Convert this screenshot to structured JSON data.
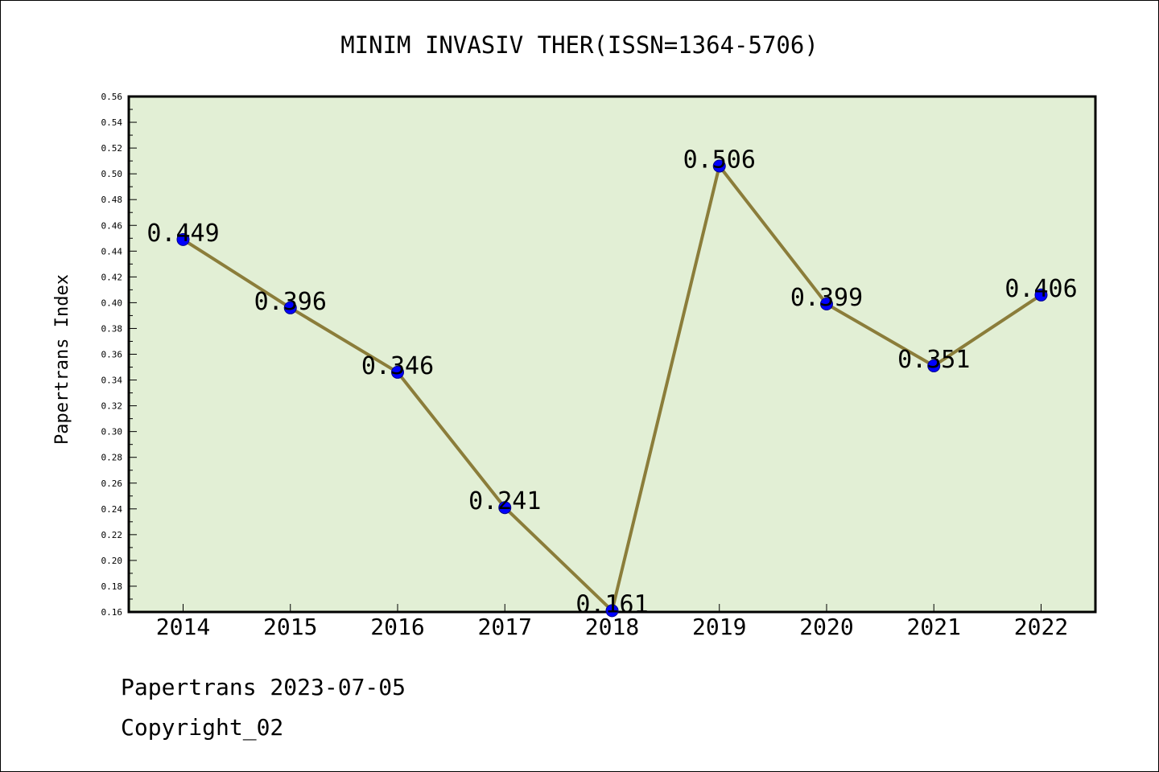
{
  "chart_data": {
    "type": "line",
    "title": "MINIM INVASIV THER(ISSN=1364-5706)",
    "xlabel": "",
    "ylabel": "Papertrans Index",
    "categories": [
      "2014",
      "2015",
      "2016",
      "2017",
      "2018",
      "2019",
      "2020",
      "2021",
      "2022"
    ],
    "values": [
      0.449,
      0.396,
      0.346,
      0.241,
      0.161,
      0.506,
      0.399,
      0.351,
      0.406
    ],
    "data_labels": [
      "0.449",
      "0.396",
      "0.346",
      "0.241",
      "0.161",
      "0.506",
      "0.399",
      "0.351",
      "0.406"
    ],
    "ylim": [
      0.16,
      0.56
    ],
    "yticks": [
      "0.16",
      "0.18",
      "0.20",
      "0.22",
      "0.24",
      "0.26",
      "0.28",
      "0.30",
      "0.32",
      "0.34",
      "0.36",
      "0.38",
      "0.40",
      "0.42",
      "0.44",
      "0.46",
      "0.48",
      "0.50",
      "0.52",
      "0.54",
      "0.56"
    ],
    "grid": false,
    "line_color": "#8b7d3a",
    "marker_color": "#0000ff",
    "plot_background": "#e2efd5"
  },
  "footer": {
    "line1": "Papertrans 2023-07-05",
    "line2": "Copyright_02"
  }
}
